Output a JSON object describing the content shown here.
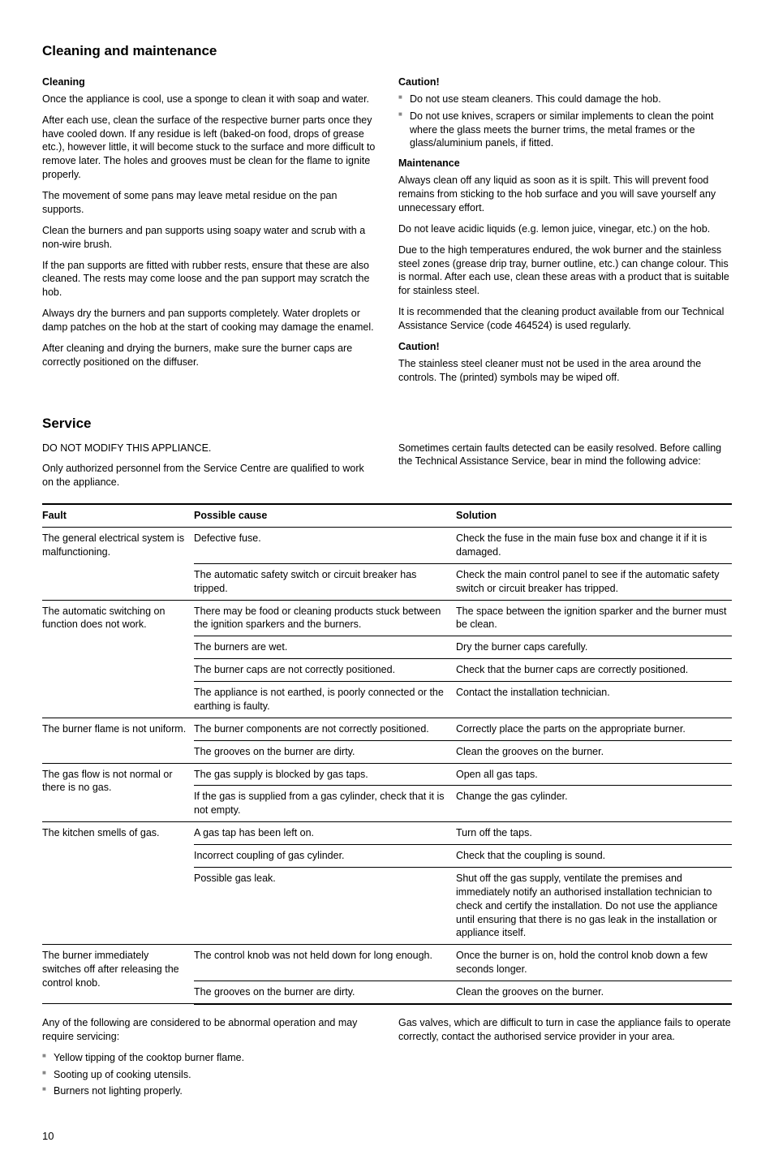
{
  "cleaning": {
    "title": "Cleaning and maintenance",
    "cleaning_h": "Cleaning",
    "p1": "Once the appliance is cool, use a sponge to clean it with soap and water.",
    "p2": "After each use, clean the surface of the respective burner parts once they have cooled down. If any residue is left (baked-on food, drops of grease etc.), however little, it will become stuck to the surface and more difficult to remove later. The holes and grooves must be clean for the flame to ignite properly.",
    "p3": "The movement of some pans may leave metal residue on the pan supports.",
    "p4": "Clean the burners and pan supports using soapy water and scrub with a non-wire brush.",
    "p5": "If the pan supports are fitted with rubber rests, ensure that these are also cleaned. The rests may come loose and the pan support may scratch the hob.",
    "p6": "Always dry the burners and pan supports completely. Water droplets or damp patches on the hob at the start of cooking may damage the enamel.",
    "p7": "After cleaning and drying the burners, make sure the burner caps are correctly positioned on the diffuser.",
    "caution1_h": "Caution!",
    "caution1_items": [
      "Do not use steam cleaners. This could damage the hob.",
      "Do not use knives, scrapers or similar implements to clean the point where the glass meets the burner trims, the metal frames or the glass/aluminium panels, if fitted."
    ],
    "maint_h": "Maintenance",
    "m1": "Always clean off any liquid as soon as it is spilt. This will prevent food remains from sticking to the hob surface and you will save yourself any unnecessary effort.",
    "m2": "Do not leave acidic liquids (e.g. lemon juice, vinegar, etc.) on the hob.",
    "m3": "Due to the high temperatures endured, the wok burner and the stainless steel zones (grease drip tray, burner outline, etc.) can change colour. This is normal. After each use, clean these areas with a product that is suitable for stainless steel.",
    "m4": "It is recommended that the cleaning product available from our Technical Assistance Service (code 464524) is used regularly.",
    "caution2_h": "Caution!",
    "caution2_p": "The stainless steel cleaner must not be used in the area around the controls. The (printed) symbols may be wiped off."
  },
  "service": {
    "title": "Service",
    "p1": "DO NOT MODIFY THIS APPLIANCE.",
    "p2": "Only authorized personnel from the Service Centre are qualified to work on the appliance.",
    "p3": "Sometimes certain faults detected can be easily resolved. Before calling the Technical Assistance Service, bear in mind the following advice:",
    "table": {
      "headers": [
        "Fault",
        "Possible cause",
        "Solution"
      ],
      "rows": [
        {
          "fault": "The general electrical system is malfunctioning.",
          "fault_rowspan": 2,
          "cells": [
            [
              "Defective fuse.",
              "Check the fuse in the main fuse box and change it if it is damaged."
            ],
            [
              "The automatic safety switch or circuit breaker has tripped.",
              "Check the main control panel to see if the automatic safety switch or circuit breaker has tripped."
            ]
          ]
        },
        {
          "fault": "The automatic switching on function does not work.",
          "fault_rowspan": 4,
          "cells": [
            [
              "There may be food or cleaning products stuck between the ignition sparkers and the burners.",
              "The space between the ignition sparker and the burner must be clean."
            ],
            [
              "The burners are wet.",
              "Dry the burner caps carefully."
            ],
            [
              "The burner caps are not correctly positioned.",
              "Check that the burner caps are correctly positioned."
            ],
            [
              "The appliance is not earthed, is poorly connected or the earthing is faulty.",
              "Contact the installation technician."
            ]
          ]
        },
        {
          "fault": "The burner flame is not uniform.",
          "fault_rowspan": 2,
          "cells": [
            [
              "The burner components are not correctly positioned.",
              "Correctly place the parts on the appropriate burner."
            ],
            [
              "The grooves on the burner are dirty.",
              "Clean the grooves on the burner."
            ]
          ]
        },
        {
          "fault": "The gas flow is not normal or there is no gas.",
          "fault_rowspan": 2,
          "cells": [
            [
              "The gas supply is blocked by gas taps.",
              "Open all gas taps."
            ],
            [
              "If the gas is supplied from a gas cylinder, check that it is not empty.",
              "Change the gas cylinder."
            ]
          ]
        },
        {
          "fault": "The kitchen smells of gas.",
          "fault_rowspan": 3,
          "cells": [
            [
              "A gas tap has been left on.",
              "Turn off the taps."
            ],
            [
              "Incorrect coupling of gas cylinder.",
              "Check that the coupling is sound."
            ],
            [
              "Possible gas leak.",
              "Shut off the gas supply, ventilate the premises and immediately notify an authorised installation technician to check and certify the installation. Do not use the appliance until ensuring that there is no gas leak in the installation or appliance itself."
            ]
          ]
        },
        {
          "fault": "The burner immediately switches off after releasing the control knob.",
          "fault_rowspan": 2,
          "cells": [
            [
              "The control knob was not held down for long enough.",
              "Once the burner is on, hold the control knob down a few seconds longer."
            ],
            [
              "The grooves on the burner are dirty.",
              "Clean the grooves on the burner."
            ]
          ]
        }
      ]
    },
    "after_p": "Any of the following are considered to be abnormal operation and may require servicing:",
    "after_items": [
      "Yellow tipping of the cooktop burner flame.",
      "Sooting up of cooking utensils.",
      "Burners not lighting properly."
    ],
    "right_p": "Gas valves, which are difficult to turn in case the appliance fails to operate correctly, contact the authorised service provider in your area."
  },
  "page": "10"
}
